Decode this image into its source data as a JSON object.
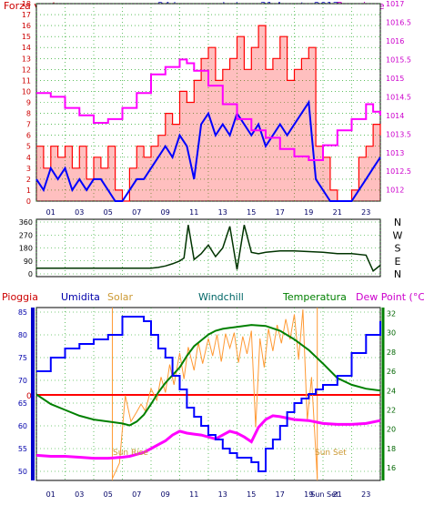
{
  "page": {
    "top_left_label": "Forza vento",
    "title": "24 hour graph day : 31 Agosto 2017",
    "top_right_label": "Pressione"
  },
  "colors": {
    "wind": "#ff0000",
    "wind_avg": "#0000ff",
    "pressure": "#ff00ff",
    "direction": "#003300",
    "rain": "#ff0000",
    "humidity": "#0000ff",
    "solar": "#ff9933",
    "windchill": "#006600",
    "temperature": "#008000",
    "dewpoint": "#ff00ff",
    "grid": "#009900",
    "axis": "#000000",
    "title": "#3333cc",
    "left_axis_label": "#cc0000",
    "right_axis_label": "#cc00cc",
    "right_axis_label_bottom": "#006600",
    "left_axis_label_bottom": "#0000aa",
    "sun_lines": "#ff9933"
  },
  "chart_data": [
    {
      "type": "line",
      "panel": "wind_pressure",
      "x_ticks": [
        "01",
        "03",
        "05",
        "07",
        "09",
        "11",
        "13",
        "15",
        "17",
        "19",
        "21",
        "23"
      ],
      "y_left_ticks": [
        "0",
        "1",
        "2",
        "3",
        "4",
        "5",
        "6",
        "7",
        "8",
        "9",
        "10",
        "11",
        "12",
        "13",
        "14",
        "15",
        "16",
        "17",
        "18"
      ],
      "y_left_range": [
        0,
        18
      ],
      "y_right_ticks": [
        "1012",
        "1012.5",
        "1013",
        "1013.5",
        "1014",
        "1014.5",
        "1015",
        "1015.5",
        "1016",
        "1016.5",
        "1017"
      ],
      "y_right_range": [
        1011.7,
        1017
      ],
      "series": [
        {
          "name": "Forza vento",
          "axis": "left",
          "x": [
            0,
            0.5,
            1,
            1.5,
            2,
            2.5,
            3,
            3.5,
            4,
            4.5,
            5,
            5.5,
            6,
            6.5,
            7,
            7.5,
            8,
            8.5,
            9,
            9.5,
            10,
            10.5,
            11,
            11.5,
            12,
            12.5,
            13,
            13.5,
            14,
            14.5,
            15,
            15.5,
            16,
            16.5,
            17,
            17.5,
            18,
            18.5,
            19,
            19.5,
            20,
            20.5,
            21,
            21.5,
            22,
            22.5,
            23,
            23.5,
            24
          ],
          "y": [
            5,
            3,
            5,
            4,
            5,
            3,
            5,
            2,
            4,
            3,
            5,
            1,
            0,
            3,
            5,
            4,
            5,
            6,
            8,
            7,
            10,
            9,
            11,
            13,
            14,
            11,
            12,
            13,
            15,
            12,
            14,
            16,
            12,
            13,
            15,
            11,
            12,
            13,
            14,
            5,
            4,
            1,
            0,
            0,
            1,
            4,
            5,
            7,
            6
          ]
        },
        {
          "name": "Vento medio",
          "axis": "left",
          "x": [
            0,
            0.5,
            1,
            1.5,
            2,
            2.5,
            3,
            3.5,
            4,
            4.5,
            5,
            5.5,
            6,
            6.5,
            7,
            7.5,
            8,
            8.5,
            9,
            9.5,
            10,
            10.5,
            11,
            11.5,
            12,
            12.5,
            13,
            13.5,
            14,
            14.5,
            15,
            15.5,
            16,
            16.5,
            17,
            17.5,
            18,
            18.5,
            19,
            19.5,
            20,
            20.5,
            21,
            21.5,
            22,
            22.5,
            23,
            23.5,
            24
          ],
          "y": [
            2,
            1,
            3,
            2,
            3,
            1,
            2,
            1,
            2,
            2,
            1,
            0,
            0,
            1,
            2,
            2,
            3,
            4,
            5,
            4,
            6,
            5,
            2,
            7,
            8,
            6,
            7,
            6,
            8,
            7,
            6,
            7,
            5,
            6,
            7,
            6,
            7,
            8,
            9,
            2,
            1,
            0,
            0,
            0,
            0,
            1,
            2,
            3,
            4
          ]
        },
        {
          "name": "Pressione",
          "axis": "right",
          "x": [
            0,
            1,
            2,
            3,
            4,
            5,
            6,
            7,
            8,
            9,
            10,
            10.5,
            11,
            12,
            13,
            14,
            15,
            16,
            17,
            18,
            19,
            20,
            21,
            22,
            23,
            23.5,
            24
          ],
          "y": [
            1014.6,
            1014.5,
            1014.2,
            1014.0,
            1013.8,
            1013.9,
            1014.2,
            1014.6,
            1015.1,
            1015.3,
            1015.5,
            1015.4,
            1015.2,
            1014.8,
            1014.3,
            1013.9,
            1013.6,
            1013.4,
            1013.1,
            1012.9,
            1012.8,
            1013.2,
            1013.6,
            1013.9,
            1014.3,
            1014.1,
            1014.0
          ]
        }
      ]
    },
    {
      "type": "line",
      "panel": "wind_direction",
      "y_ticks": [
        "360",
        "270",
        "180",
        "90",
        "0"
      ],
      "y_range": [
        0,
        360
      ],
      "compass_labels": [
        "N",
        "W",
        "S",
        "E",
        "N"
      ],
      "series": [
        {
          "name": "Direzione vento",
          "x": [
            0,
            1,
            2,
            3,
            4,
            5,
            6,
            7,
            8,
            8.5,
            9,
            9.5,
            10,
            10.3,
            10.6,
            11,
            11.5,
            12,
            12.5,
            13,
            13.5,
            14,
            14.5,
            15,
            15.5,
            16,
            17,
            18,
            19,
            20,
            21,
            22,
            23,
            23.5,
            24
          ],
          "y": [
            40,
            40,
            40,
            40,
            40,
            40,
            40,
            40,
            40,
            45,
            55,
            70,
            90,
            110,
            340,
            100,
            140,
            200,
            120,
            180,
            330,
            30,
            340,
            150,
            140,
            150,
            160,
            160,
            155,
            150,
            140,
            140,
            130,
            20,
            60
          ]
        }
      ]
    },
    {
      "type": "line",
      "panel": "temperature_humidity",
      "legend": [
        "Pioggia",
        "Umidita",
        "Solar",
        "Windchill",
        "Temperatura",
        "Dew Point (°C)"
      ],
      "x_ticks": [
        "01",
        "03",
        "05",
        "07",
        "09",
        "11",
        "13",
        "15",
        "17",
        "19",
        "21",
        "23"
      ],
      "sun_rise_label": "Sun Rise",
      "sun_set_label": "Sun Set",
      "sun_set_tick": "Sun Set",
      "sun_rise_hour": 5.3,
      "sun_set_hour": 19.6,
      "rain_label": "0",
      "y_left_ticks": [
        "85",
        "80",
        "75",
        "70",
        "65",
        "60",
        "55",
        "50"
      ],
      "y_left_range": [
        48,
        86
      ],
      "y_right_ticks": [
        "32",
        "30",
        "28",
        "26",
        "24",
        "22",
        "20",
        "18",
        "16"
      ],
      "y_right_range": [
        14.7,
        32.6
      ],
      "rain_level": 0,
      "series": [
        {
          "name": "Umidita",
          "axis": "left",
          "x": [
            0,
            1,
            2,
            3,
            4,
            5,
            6,
            6.5,
            7,
            7.5,
            8,
            8.5,
            9,
            9.5,
            10,
            10.5,
            11,
            11.5,
            12,
            12.5,
            13,
            13.5,
            14,
            14.5,
            15,
            15.5,
            16,
            16.5,
            17,
            17.5,
            18,
            18.5,
            19,
            19.5,
            20,
            21,
            22,
            23,
            24
          ],
          "y": [
            72,
            75,
            77,
            78,
            79,
            80,
            84,
            84,
            84,
            83,
            80,
            77,
            75,
            71,
            68,
            64,
            62,
            60,
            58,
            57,
            55,
            54,
            53,
            53,
            52,
            50,
            55,
            57,
            60,
            63,
            65,
            66,
            67,
            68,
            69,
            71,
            76,
            80,
            83
          ]
        },
        {
          "name": "Temperatura",
          "axis": "right",
          "x": [
            0,
            1,
            2,
            3,
            4,
            5,
            6,
            6.5,
            7,
            7.5,
            8,
            8.5,
            9,
            9.5,
            10,
            10.5,
            11,
            11.5,
            12,
            12.5,
            13,
            13.5,
            14,
            15,
            16,
            17,
            18,
            19,
            20,
            21,
            22,
            23,
            24
          ],
          "y": [
            23.6,
            22.6,
            22.0,
            21.4,
            21.0,
            20.8,
            20.6,
            20.4,
            20.8,
            21.5,
            22.6,
            23.8,
            24.8,
            25.6,
            26.4,
            27.6,
            28.6,
            29.2,
            29.8,
            30.2,
            30.4,
            30.5,
            30.6,
            30.8,
            30.7,
            30.2,
            29.3,
            28.2,
            26.8,
            25.3,
            24.6,
            24.2,
            24.0
          ]
        },
        {
          "name": "Dew Point (°C)",
          "axis": "right",
          "x": [
            0,
            1,
            2,
            3,
            4,
            5,
            6,
            6.5,
            7,
            7.5,
            8,
            8.5,
            9,
            9.5,
            10,
            10.5,
            11,
            11.5,
            12,
            12.5,
            13,
            13.5,
            14,
            14.5,
            15,
            15.5,
            16,
            16.5,
            17,
            18,
            19,
            20,
            21,
            22,
            23,
            24
          ],
          "y": [
            17.3,
            17.2,
            17.2,
            17.1,
            17.0,
            17.0,
            17.1,
            17.2,
            17.4,
            17.6,
            18.0,
            18.4,
            18.8,
            19.4,
            19.8,
            19.6,
            19.5,
            19.4,
            19.2,
            19.0,
            19.4,
            19.8,
            19.6,
            19.2,
            18.7,
            20.2,
            21.0,
            21.4,
            21.3,
            21.0,
            20.9,
            20.6,
            20.5,
            20.5,
            20.6,
            20.9
          ]
        },
        {
          "name": "Solar",
          "axis": "right",
          "x": [
            5.3,
            5.8,
            6.2,
            6.6,
            7.0,
            7.3,
            7.6,
            8.0,
            8.4,
            8.7,
            9.0,
            9.3,
            9.6,
            10.0,
            10.3,
            10.6,
            11.0,
            11.3,
            11.6,
            12.0,
            12.3,
            12.6,
            12.9,
            13.2,
            13.5,
            13.8,
            14.1,
            14.4,
            14.7,
            15.0,
            15.3,
            15.6,
            15.9,
            16.2,
            16.5,
            16.8,
            17.1,
            17.4,
            17.7,
            18.0,
            18.3,
            18.6,
            18.9,
            19.2,
            19.6
          ],
          "y": [
            14.9,
            16.5,
            23.5,
            20.8,
            21.8,
            22.6,
            21.9,
            24.2,
            23.0,
            25.4,
            23.8,
            26.7,
            24.6,
            27.9,
            25.2,
            28.5,
            26.1,
            29.0,
            26.8,
            29.4,
            27.6,
            29.8,
            27.0,
            29.9,
            28.4,
            30.0,
            26.9,
            29.6,
            27.8,
            30.2,
            20.2,
            29.4,
            26.4,
            30.4,
            28.1,
            30.8,
            28.9,
            31.4,
            29.3,
            31.9,
            27.2,
            32.4,
            20.9,
            25.4,
            14.9
          ]
        }
      ]
    }
  ]
}
